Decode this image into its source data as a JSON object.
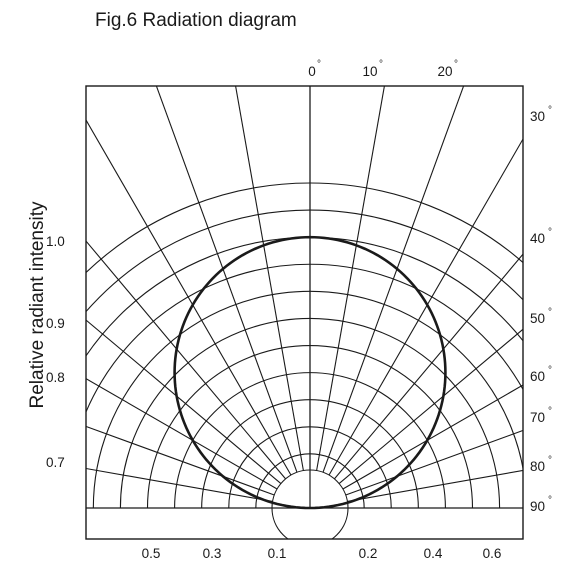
{
  "figure": {
    "title": "Fig.6 Radiation diagram",
    "ylabel": "Relative radiant intensity",
    "colors": {
      "ink": "#1a1a1a",
      "background": "#ffffff"
    }
  },
  "chart_data": {
    "type": "polar-radiation",
    "title": "Fig.6 Radiation diagram",
    "ylabel": "Relative radiant intensity",
    "top_angle_labels": [
      "0",
      "10",
      "20"
    ],
    "right_angle_labels": [
      "30",
      "40",
      "50",
      "60",
      "70",
      "80",
      "90"
    ],
    "left_intensity_labels": [
      "1.0",
      "0.9",
      "0.8",
      "0.7"
    ],
    "bottom_intensity_labels": [
      "0.5",
      "0.3",
      "0.1",
      "0.2",
      "0.4",
      "0.6"
    ],
    "degree_symbol": "°",
    "angle_step_deg": 10,
    "angle_range_deg": [
      -90,
      90
    ],
    "radial_grid": [
      0.1,
      0.2,
      0.3,
      0.4,
      0.5,
      0.6,
      0.7,
      0.8,
      0.9,
      1.0,
      1.1,
      1.2
    ],
    "pattern": {
      "shape": "circle-tangent-at-origin",
      "peak_angle_deg": 0,
      "peak_value": 1.0,
      "half_intensity_angle_deg": 60,
      "value_at_90_deg": 0.0
    }
  }
}
